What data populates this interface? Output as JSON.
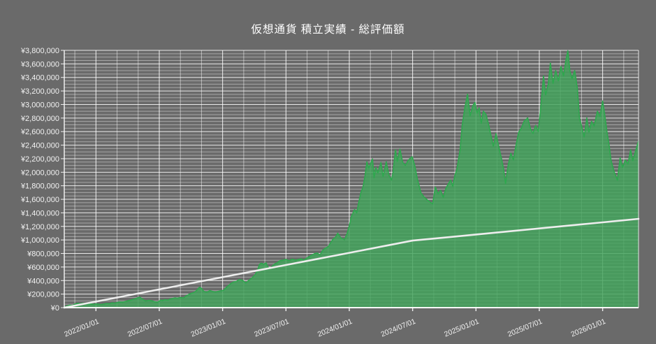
{
  "title": "仮想通貨 積立実績 - 総評価額",
  "colors": {
    "background": "#6a6a6a",
    "gridline": "#ffffff",
    "axis_text": "#f2f2f2",
    "area_fill": "#43a35c",
    "area_stroke": "#2ea84e",
    "line_stroke": "#ededed"
  },
  "chart_data": {
    "type": "area",
    "title": "仮想通貨 積立実績 - 総評価額",
    "legend": "none",
    "grid": "on",
    "y_axis": {
      "min": 0,
      "max": 3800000,
      "major_step": 200000,
      "minor_step": 50000,
      "tick_prefix": "¥",
      "tick_labels": [
        "¥0",
        "¥200,000",
        "¥400,000",
        "¥600,000",
        "¥800,000",
        "¥1,000,000",
        "¥1,200,000",
        "¥1,400,000",
        "¥1,600,000",
        "¥1,800,000",
        "¥2,000,000",
        "¥2,200,000",
        "¥2,400,000",
        "¥2,600,000",
        "¥2,800,000",
        "¥3,000,000",
        "¥3,200,000",
        "¥3,400,000",
        "¥3,600,000",
        "¥3,800,000"
      ]
    },
    "x_axis": {
      "unit": "months_from_series_start",
      "range": [
        0,
        54.4
      ],
      "gridline_step_months": 2,
      "first_gridline_month": 1,
      "tick_labels": [
        {
          "label": "2022/01/01",
          "t": 3
        },
        {
          "label": "2022/07/01",
          "t": 9
        },
        {
          "label": "2023/01/01",
          "t": 15
        },
        {
          "label": "2023/07/01",
          "t": 21
        },
        {
          "label": "2024/01/01",
          "t": 27
        },
        {
          "label": "2024/07/01",
          "t": 33
        },
        {
          "label": "2025/01/01",
          "t": 39
        },
        {
          "label": "2025/07/01",
          "t": 45
        },
        {
          "label": "2026/01/01",
          "t": 51
        }
      ]
    },
    "series": [
      {
        "id": "valuation_area",
        "type": "area",
        "value_unit": "thousand_yen",
        "points": [
          [
            0,
            12
          ],
          [
            0.25,
            22
          ],
          [
            0.5,
            38
          ],
          [
            0.75,
            30
          ],
          [
            1,
            52
          ],
          [
            1.3,
            64
          ],
          [
            1.5,
            58
          ],
          [
            1.8,
            66
          ],
          [
            2,
            60
          ],
          [
            2.3,
            50
          ],
          [
            2.5,
            55
          ],
          [
            2.8,
            48
          ],
          [
            3,
            56
          ],
          [
            3.3,
            50
          ],
          [
            3.5,
            46
          ],
          [
            3.8,
            55
          ],
          [
            4,
            62
          ],
          [
            4.3,
            58
          ],
          [
            4.5,
            70
          ],
          [
            4.8,
            66
          ],
          [
            5,
            75
          ],
          [
            5.3,
            85
          ],
          [
            5.5,
            80
          ],
          [
            5.8,
            92
          ],
          [
            6,
            100
          ],
          [
            6.3,
            112
          ],
          [
            6.5,
            122
          ],
          [
            6.8,
            135
          ],
          [
            7,
            148
          ],
          [
            7.15,
            155
          ],
          [
            7.3,
            138
          ],
          [
            7.5,
            118
          ],
          [
            7.7,
            98
          ],
          [
            8,
            108
          ],
          [
            8.3,
            100
          ],
          [
            8.5,
            90
          ],
          [
            8.8,
            80
          ],
          [
            9,
            96
          ],
          [
            9.15,
            114
          ],
          [
            9.3,
            104
          ],
          [
            9.5,
            118
          ],
          [
            9.8,
            112
          ],
          [
            10,
            124
          ],
          [
            10.3,
            136
          ],
          [
            10.5,
            145
          ],
          [
            10.7,
            138
          ],
          [
            11,
            150
          ],
          [
            11.3,
            144
          ],
          [
            11.5,
            168
          ],
          [
            11.8,
            196
          ],
          [
            12,
            210
          ],
          [
            12.3,
            226
          ],
          [
            12.5,
            248
          ],
          [
            12.8,
            300
          ],
          [
            13,
            286
          ],
          [
            13.2,
            242
          ],
          [
            13.45,
            228
          ],
          [
            13.6,
            234
          ],
          [
            13.8,
            252
          ],
          [
            14,
            242
          ],
          [
            14.3,
            230
          ],
          [
            14.5,
            238
          ],
          [
            14.8,
            248
          ],
          [
            15.1,
            256
          ],
          [
            15.3,
            290
          ],
          [
            15.6,
            332
          ],
          [
            15.85,
            362
          ],
          [
            16.1,
            382
          ],
          [
            16.3,
            386
          ],
          [
            16.55,
            414
          ],
          [
            16.8,
            408
          ],
          [
            17,
            390
          ],
          [
            17.2,
            362
          ],
          [
            17.45,
            400
          ],
          [
            17.65,
            421
          ],
          [
            17.85,
            448
          ],
          [
            18.1,
            490
          ],
          [
            18.3,
            545
          ],
          [
            18.5,
            640
          ],
          [
            18.7,
            656
          ],
          [
            18.9,
            638
          ],
          [
            19.1,
            662
          ],
          [
            19.4,
            572
          ],
          [
            19.65,
            602
          ],
          [
            19.9,
            642
          ],
          [
            20.15,
            660
          ],
          [
            20.4,
            692
          ],
          [
            20.7,
            702
          ],
          [
            21,
            712
          ],
          [
            21.3,
            694
          ],
          [
            21.6,
            716
          ],
          [
            21.9,
            702
          ],
          [
            22.2,
            712
          ],
          [
            22.45,
            722
          ],
          [
            22.7,
            702
          ],
          [
            23.05,
            740
          ],
          [
            23.3,
            762
          ],
          [
            23.7,
            797
          ],
          [
            24,
            806
          ],
          [
            24.2,
            772
          ],
          [
            24.5,
            850
          ],
          [
            24.75,
            880
          ],
          [
            25,
            900
          ],
          [
            25.2,
            950
          ],
          [
            25.45,
            1010
          ],
          [
            25.7,
            1040
          ],
          [
            25.9,
            1100
          ],
          [
            26.2,
            1030
          ],
          [
            26.55,
            1004
          ],
          [
            26.8,
            1100
          ],
          [
            27,
            1210
          ],
          [
            27.2,
            1346
          ],
          [
            27.5,
            1450
          ],
          [
            27.7,
            1400
          ],
          [
            27.9,
            1560
          ],
          [
            28.1,
            1700
          ],
          [
            28.3,
            1780
          ],
          [
            28.5,
            1950
          ],
          [
            28.66,
            2154
          ],
          [
            28.85,
            2060
          ],
          [
            29.05,
            2144
          ],
          [
            29.2,
            2195
          ],
          [
            29.35,
            1915
          ],
          [
            29.5,
            2071
          ],
          [
            29.7,
            1990
          ],
          [
            30,
            2144
          ],
          [
            30.2,
            1936
          ],
          [
            30.5,
            2154
          ],
          [
            30.75,
            1960
          ],
          [
            31,
            1884
          ],
          [
            31.15,
            2000
          ],
          [
            31.37,
            2330
          ],
          [
            31.55,
            2160
          ],
          [
            31.8,
            2340
          ],
          [
            32.05,
            2150
          ],
          [
            32.3,
            2100
          ],
          [
            32.6,
            2180
          ],
          [
            32.95,
            2230
          ],
          [
            33.2,
            2100
          ],
          [
            33.45,
            1900
          ],
          [
            33.8,
            1690
          ],
          [
            34.1,
            1630
          ],
          [
            34.45,
            1584
          ],
          [
            34.9,
            1532
          ],
          [
            35.15,
            1781
          ],
          [
            35.4,
            1682
          ],
          [
            35.65,
            1732
          ],
          [
            35.9,
            1626
          ],
          [
            36.15,
            1760
          ],
          [
            36.4,
            1833
          ],
          [
            36.6,
            1884
          ],
          [
            36.8,
            1791
          ],
          [
            37,
            1952
          ],
          [
            37.2,
            2050
          ],
          [
            37.5,
            2330
          ],
          [
            37.7,
            2702
          ],
          [
            37.95,
            2952
          ],
          [
            38.2,
            3152
          ],
          [
            38.45,
            2832
          ],
          [
            38.7,
            2982
          ],
          [
            38.9,
            3032
          ],
          [
            39.1,
            2872
          ],
          [
            39.3,
            2952
          ],
          [
            39.5,
            2722
          ],
          [
            39.7,
            2902
          ],
          [
            39.95,
            2852
          ],
          [
            40.2,
            2702
          ],
          [
            40.45,
            2522
          ],
          [
            40.65,
            2382
          ],
          [
            40.9,
            2572
          ],
          [
            41.15,
            2382
          ],
          [
            41.4,
            2212
          ],
          [
            41.6,
            2062
          ],
          [
            41.8,
            1833
          ],
          [
            42.05,
            2102
          ],
          [
            42.3,
            2282
          ],
          [
            42.55,
            2182
          ],
          [
            42.8,
            2402
          ],
          [
            43.05,
            2592
          ],
          [
            43.3,
            2652
          ],
          [
            43.55,
            2752
          ],
          [
            43.9,
            2802
          ],
          [
            44.15,
            2652
          ],
          [
            44.4,
            2572
          ],
          [
            44.65,
            2692
          ],
          [
            44.9,
            2602
          ],
          [
            45.1,
            2902
          ],
          [
            45.4,
            3422
          ],
          [
            45.6,
            3142
          ],
          [
            45.85,
            3302
          ],
          [
            46.05,
            3612
          ],
          [
            46.3,
            3312
          ],
          [
            46.55,
            3502
          ],
          [
            46.8,
            3352
          ],
          [
            47.05,
            3562
          ],
          [
            47.3,
            3422
          ],
          [
            47.5,
            3632
          ],
          [
            47.7,
            3795
          ],
          [
            47.9,
            3492
          ],
          [
            48.1,
            3382
          ],
          [
            48.35,
            3502
          ],
          [
            48.6,
            3242
          ],
          [
            48.8,
            2802
          ],
          [
            49.05,
            2652
          ],
          [
            49.25,
            2522
          ],
          [
            49.5,
            2802
          ],
          [
            49.7,
            2592
          ],
          [
            49.95,
            2752
          ],
          [
            50.2,
            2682
          ],
          [
            50.5,
            2902
          ],
          [
            50.75,
            2822
          ],
          [
            51,
            3052
          ],
          [
            51.2,
            2852
          ],
          [
            51.4,
            2602
          ],
          [
            51.6,
            2412
          ],
          [
            51.8,
            2172
          ],
          [
            52.1,
            2002
          ],
          [
            52.4,
            1882
          ],
          [
            52.65,
            2212
          ],
          [
            52.9,
            2072
          ],
          [
            53.15,
            2182
          ],
          [
            53.4,
            2122
          ],
          [
            53.65,
            2332
          ],
          [
            53.85,
            2172
          ],
          [
            54.1,
            2302
          ],
          [
            54.4,
            2462
          ]
        ]
      },
      {
        "id": "investment_line",
        "type": "line",
        "value_unit": "thousand_yen",
        "points": [
          [
            0,
            0
          ],
          [
            3,
            90
          ],
          [
            6,
            180
          ],
          [
            9,
            270
          ],
          [
            12,
            360
          ],
          [
            15,
            450
          ],
          [
            18,
            540
          ],
          [
            21,
            630
          ],
          [
            24,
            720
          ],
          [
            27,
            810
          ],
          [
            30,
            900
          ],
          [
            33,
            990
          ],
          [
            36,
            1035
          ],
          [
            39,
            1080
          ],
          [
            42,
            1125
          ],
          [
            45,
            1170
          ],
          [
            48,
            1215
          ],
          [
            51,
            1260
          ],
          [
            54.4,
            1311
          ]
        ]
      }
    ]
  }
}
